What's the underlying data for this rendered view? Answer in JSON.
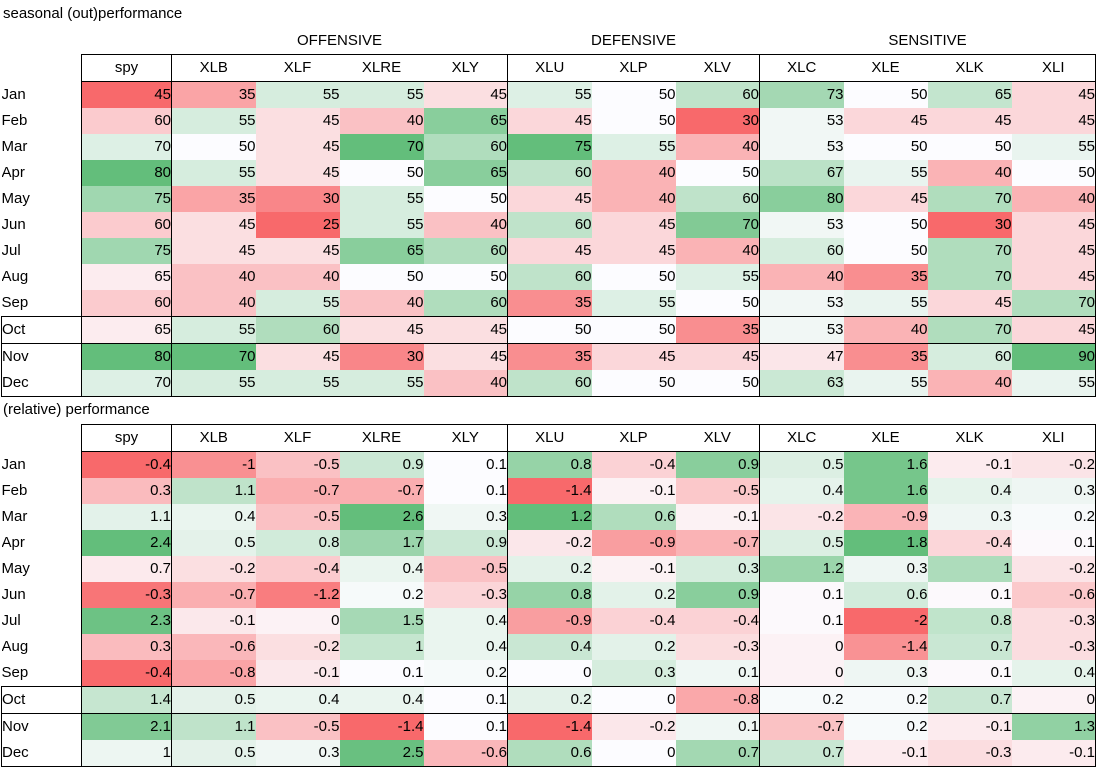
{
  "color_scale": {
    "low": "#F8696B",
    "mid": "#FCFCFF",
    "high": "#63BE7B"
  },
  "chart_data": [
    {
      "type": "heatmap",
      "title": "seasonal (out)performance",
      "show_group_header": true,
      "legend_position": "none",
      "grid": false,
      "groups": [
        {
          "label": "",
          "columns": [
            "spy"
          ]
        },
        {
          "label": "OFFENSIVE",
          "columns": [
            "XLB",
            "XLF",
            "XLRE",
            "XLY"
          ]
        },
        {
          "label": "DEFENSIVE",
          "columns": [
            "XLU",
            "XLP",
            "XLV"
          ]
        },
        {
          "label": "SENSITIVE",
          "columns": [
            "XLC",
            "XLE",
            "XLK",
            "XLI"
          ]
        }
      ],
      "section_start_rows": [
        9,
        10
      ],
      "rows": [
        {
          "month": "Jan",
          "values": [
            45,
            35,
            55,
            55,
            45,
            55,
            50,
            60,
            73,
            50,
            65,
            45
          ]
        },
        {
          "month": "Feb",
          "values": [
            60,
            55,
            45,
            40,
            65,
            45,
            50,
            30,
            53,
            45,
            45,
            45
          ]
        },
        {
          "month": "Mar",
          "values": [
            70,
            50,
            45,
            70,
            60,
            75,
            55,
            40,
            53,
            50,
            50,
            55
          ]
        },
        {
          "month": "Apr",
          "values": [
            80,
            55,
            45,
            50,
            65,
            60,
            40,
            50,
            67,
            55,
            40,
            50
          ]
        },
        {
          "month": "May",
          "values": [
            75,
            35,
            30,
            55,
            50,
            45,
            40,
            60,
            80,
            45,
            70,
            40
          ]
        },
        {
          "month": "Jun",
          "values": [
            60,
            45,
            25,
            55,
            40,
            60,
            45,
            70,
            53,
            50,
            30,
            45
          ]
        },
        {
          "month": "Jul",
          "values": [
            75,
            45,
            45,
            65,
            60,
            45,
            45,
            40,
            60,
            50,
            70,
            45
          ]
        },
        {
          "month": "Aug",
          "values": [
            65,
            40,
            40,
            50,
            50,
            60,
            50,
            55,
            40,
            35,
            70,
            45
          ]
        },
        {
          "month": "Sep",
          "values": [
            60,
            40,
            55,
            40,
            60,
            35,
            55,
            50,
            53,
            55,
            45,
            70
          ]
        },
        {
          "month": "Oct",
          "values": [
            65,
            55,
            60,
            45,
            45,
            50,
            50,
            35,
            53,
            40,
            70,
            45
          ]
        },
        {
          "month": "Nov",
          "values": [
            80,
            70,
            45,
            30,
            45,
            35,
            45,
            45,
            47,
            35,
            60,
            90
          ]
        },
        {
          "month": "Dec",
          "values": [
            70,
            55,
            55,
            55,
            40,
            60,
            50,
            50,
            63,
            55,
            40,
            55
          ]
        }
      ]
    },
    {
      "type": "heatmap",
      "title": "(relative) performance",
      "show_group_header": false,
      "legend_position": "none",
      "grid": false,
      "groups": [
        {
          "label": "",
          "columns": [
            "spy"
          ]
        },
        {
          "label": "OFFENSIVE",
          "columns": [
            "XLB",
            "XLF",
            "XLRE",
            "XLY"
          ]
        },
        {
          "label": "DEFENSIVE",
          "columns": [
            "XLU",
            "XLP",
            "XLV"
          ]
        },
        {
          "label": "SENSITIVE",
          "columns": [
            "XLC",
            "XLE",
            "XLK",
            "XLI"
          ]
        }
      ],
      "section_start_rows": [
        9,
        10
      ],
      "rows": [
        {
          "month": "Jan",
          "values": [
            -0.4,
            -1,
            -0.5,
            0.9,
            0.1,
            0.8,
            -0.4,
            0.9,
            0.5,
            1.6,
            -0.1,
            -0.2
          ]
        },
        {
          "month": "Feb",
          "values": [
            0.3,
            1.1,
            -0.7,
            -0.7,
            0.1,
            -1.4,
            -0.1,
            -0.5,
            0.4,
            1.6,
            0.4,
            0.3
          ]
        },
        {
          "month": "Mar",
          "values": [
            1.1,
            0.4,
            -0.5,
            2.6,
            0.3,
            1.2,
            0.6,
            -0.1,
            -0.2,
            -0.9,
            0.3,
            0.2
          ]
        },
        {
          "month": "Apr",
          "values": [
            2.4,
            0.5,
            0.8,
            1.7,
            0.9,
            -0.2,
            -0.9,
            -0.7,
            0.5,
            1.8,
            -0.4,
            0.1
          ]
        },
        {
          "month": "May",
          "values": [
            0.7,
            -0.2,
            -0.4,
            0.4,
            -0.5,
            0.2,
            -0.1,
            0.3,
            1.2,
            0.3,
            1,
            -0.2
          ]
        },
        {
          "month": "Jun",
          "values": [
            -0.3,
            -0.7,
            -1.2,
            0.2,
            -0.3,
            0.8,
            0.2,
            0.9,
            0.1,
            0.6,
            0.1,
            -0.6
          ]
        },
        {
          "month": "Jul",
          "values": [
            2.3,
            -0.1,
            0,
            1.5,
            0.4,
            -0.9,
            -0.4,
            -0.4,
            0.1,
            -2,
            0.8,
            -0.3
          ]
        },
        {
          "month": "Aug",
          "values": [
            0.3,
            -0.6,
            -0.2,
            1,
            0.4,
            0.4,
            0.2,
            -0.3,
            0,
            -1.4,
            0.7,
            -0.3
          ]
        },
        {
          "month": "Sep",
          "values": [
            -0.4,
            -0.8,
            -0.1,
            0.1,
            0.2,
            0,
            0.3,
            0.1,
            0,
            0.3,
            0.1,
            0.4
          ]
        },
        {
          "month": "Oct",
          "values": [
            1.4,
            0.5,
            0.4,
            0.4,
            0.1,
            0.2,
            0,
            -0.8,
            0.2,
            0.2,
            0.7,
            0
          ]
        },
        {
          "month": "Nov",
          "values": [
            2.1,
            1.1,
            -0.5,
            -1.4,
            0.1,
            -1.4,
            -0.2,
            0.1,
            -0.7,
            0.2,
            -0.1,
            1.3
          ]
        },
        {
          "month": "Dec",
          "values": [
            1,
            0.5,
            0.3,
            2.5,
            -0.6,
            0.6,
            0,
            0.7,
            0.7,
            -0.1,
            -0.3,
            -0.1
          ]
        }
      ]
    }
  ]
}
